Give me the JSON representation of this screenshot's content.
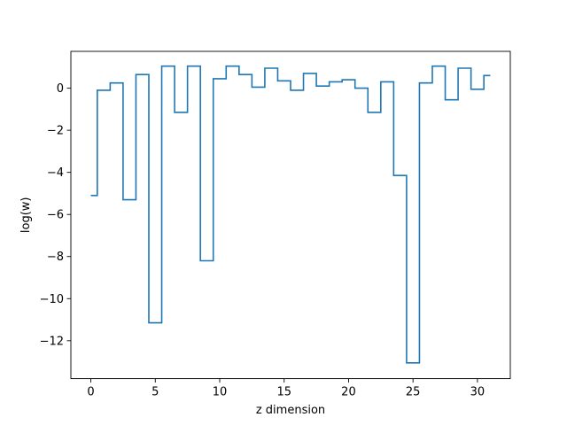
{
  "chart_data": {
    "type": "line",
    "drawstyle": "steps-mid",
    "title": "",
    "xlabel": "z dimension",
    "ylabel": "log(w)",
    "xlim": [
      -1.55,
      32.55
    ],
    "ylim": [
      -13.8,
      1.75
    ],
    "grid": false,
    "xticks": [
      0,
      5,
      10,
      15,
      20,
      25,
      30
    ],
    "xtick_labels": [
      "0",
      "5",
      "10",
      "15",
      "20",
      "25",
      "30"
    ],
    "yticks": [
      -12,
      -10,
      -8,
      -6,
      -4,
      -2,
      0
    ],
    "ytick_labels": [
      "−12",
      "−10",
      "−8",
      "−6",
      "−4",
      "−2",
      "0"
    ],
    "series": [
      {
        "color": "#1f77b4",
        "x": [
          0,
          1,
          2,
          3,
          4,
          5,
          6,
          7,
          8,
          9,
          10,
          11,
          12,
          13,
          14,
          15,
          16,
          17,
          18,
          19,
          20,
          21,
          22,
          23,
          24,
          25,
          26,
          27,
          28,
          29,
          30,
          31
        ],
        "values": [
          -5.1,
          -0.1,
          0.25,
          -5.3,
          0.65,
          -11.15,
          1.05,
          -1.15,
          1.05,
          -8.2,
          0.45,
          1.05,
          0.65,
          0.05,
          0.95,
          0.35,
          -0.1,
          0.7,
          0.1,
          0.3,
          0.4,
          0.0,
          -1.15,
          0.3,
          -4.15,
          -13.05,
          0.25,
          1.05,
          -0.55,
          0.95,
          -0.05,
          0.6
        ]
      }
    ]
  }
}
